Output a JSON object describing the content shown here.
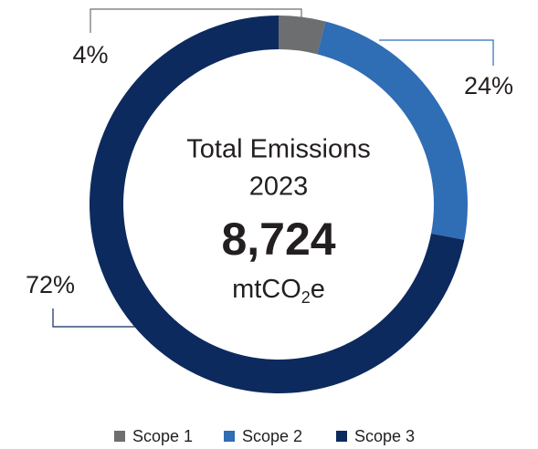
{
  "chart_data": {
    "type": "pie",
    "center_text": [
      "Total Emissions",
      "2023"
    ],
    "total": "8,724",
    "unit": [
      "mtCO",
      "2",
      "e"
    ],
    "categories": [
      "Scope 1",
      "Scope 2",
      "Scope 3"
    ],
    "values": [
      4,
      24,
      72
    ],
    "value_labels": [
      "4%",
      "24%",
      "72%"
    ],
    "colors": [
      "#6d6e70",
      "#2f6db5",
      "#0d2a5e"
    ],
    "legend": "bottom"
  }
}
